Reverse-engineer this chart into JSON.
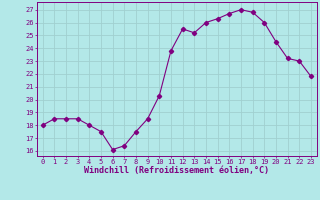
{
  "x": [
    0,
    1,
    2,
    3,
    4,
    5,
    6,
    7,
    8,
    9,
    10,
    11,
    12,
    13,
    14,
    15,
    16,
    17,
    18,
    19,
    20,
    21,
    22,
    23
  ],
  "y": [
    18.0,
    18.5,
    18.5,
    18.5,
    18.0,
    17.5,
    16.1,
    16.4,
    17.5,
    18.5,
    20.3,
    23.8,
    25.5,
    25.2,
    26.0,
    26.3,
    26.7,
    27.0,
    26.8,
    26.0,
    24.5,
    23.2,
    23.0,
    21.8
  ],
  "line_color": "#800080",
  "marker": "D",
  "marker_size": 2.2,
  "bg_color": "#b3e8e8",
  "grid_color": "#a0d0d0",
  "ylabel_ticks": [
    16,
    17,
    18,
    19,
    20,
    21,
    22,
    23,
    24,
    25,
    26,
    27
  ],
  "xlabel": "Windchill (Refroidissement éolien,°C)",
  "xlim": [
    -0.5,
    23.5
  ],
  "ylim": [
    15.6,
    27.6
  ],
  "tick_label_color": "#800080",
  "axis_label_color": "#800080",
  "tick_fontsize": 5.0,
  "xlabel_fontsize": 6.0
}
